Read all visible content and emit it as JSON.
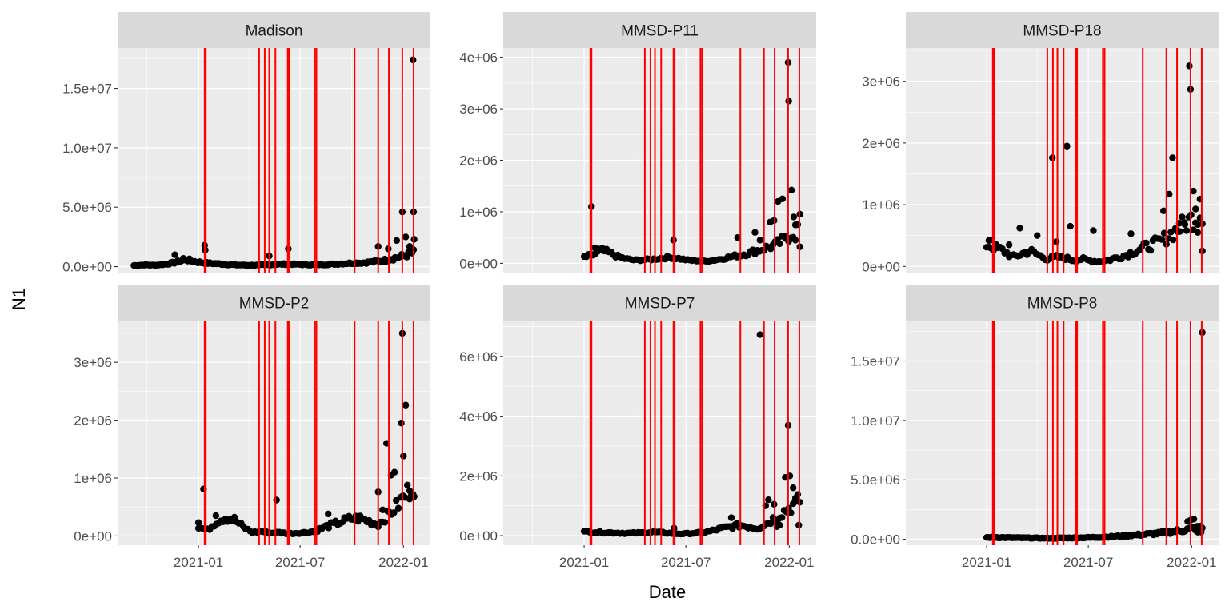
{
  "chart_data": {
    "type": "scatter",
    "xlabel": "Date",
    "ylabel": "N1",
    "x_ticks": [
      "2021-01",
      "2021-07",
      "2022-01"
    ],
    "x_range": [
      "2020-08-10",
      "2022-02-18"
    ],
    "vertical_lines": {
      "color": "#ff0000",
      "dates": [
        "2021-01-12",
        "2021-01-14",
        "2021-04-19",
        "2021-04-29",
        "2021-05-07",
        "2021-05-18",
        "2021-06-09",
        "2021-06-11",
        "2021-07-27",
        "2021-07-30",
        "2021-10-06",
        "2021-11-17",
        "2021-12-06",
        "2021-12-30",
        "2022-01-19"
      ]
    },
    "panels": [
      {
        "title": "Madison",
        "ylim": [
          -500000,
          18400000
        ],
        "y_ticks": [
          0,
          5000000,
          10000000,
          15000000
        ],
        "y_tick_labels": [
          "0.0e+00",
          "5.0e+06",
          "1.0e+07",
          "1.5e+07"
        ],
        "series": {
          "baseline": {
            "start": "2020-09-08",
            "end": "2022-01-20",
            "step_days": 3,
            "values": [
              100000,
              150000,
              120000,
              200000,
              350000,
              600000,
              400000,
              300000,
              250000,
              180000,
              140000,
              120000,
              130000,
              160000,
              200000,
              220000,
              180000,
              160000,
              170000,
              200000,
              250000,
              300000,
              320000,
              400000,
              500000,
              700000,
              900000,
              1200000
            ]
          },
          "points": [
            {
              "x": "2020-11-20",
              "y": 1000000
            },
            {
              "x": "2020-12-05",
              "y": 700000
            },
            {
              "x": "2021-01-12",
              "y": 1800000
            },
            {
              "x": "2021-01-13",
              "y": 1400000
            },
            {
              "x": "2021-05-07",
              "y": 900000
            },
            {
              "x": "2021-06-10",
              "y": 1500000
            },
            {
              "x": "2021-11-17",
              "y": 1700000
            },
            {
              "x": "2021-12-05",
              "y": 1500000
            },
            {
              "x": "2021-12-20",
              "y": 2200000
            },
            {
              "x": "2021-12-30",
              "y": 4600000
            },
            {
              "x": "2022-01-05",
              "y": 2500000
            },
            {
              "x": "2022-01-12",
              "y": 1700000
            },
            {
              "x": "2022-01-18",
              "y": 17400000
            },
            {
              "x": "2022-01-19",
              "y": 4600000
            },
            {
              "x": "2022-01-20",
              "y": 2300000
            }
          ]
        }
      },
      {
        "title": "MMSD-P11",
        "ylim": [
          -180000,
          4180000
        ],
        "y_ticks": [
          0,
          1000000,
          2000000,
          3000000,
          4000000
        ],
        "y_tick_labels": [
          "0e+00",
          "1e+06",
          "2e+06",
          "3e+06",
          "4e+06"
        ],
        "series": {
          "baseline": {
            "start": "2021-01-01",
            "end": "2022-01-22",
            "step_days": 4,
            "values": [
              120000,
              160000,
              250000,
              200000,
              120000,
              80000,
              60000,
              70000,
              80000,
              100000,
              120000,
              90000,
              60000,
              50000,
              40000,
              60000,
              90000,
              130000,
              160000,
              200000,
              250000,
              300000,
              350000,
              450000,
              600000,
              800000
            ]
          },
          "points": [
            {
              "x": "2021-01-14",
              "y": 1100000
            },
            {
              "x": "2021-01-20",
              "y": 300000
            },
            {
              "x": "2021-01-25",
              "y": 280000
            },
            {
              "x": "2021-06-09",
              "y": 450000
            },
            {
              "x": "2021-10-01",
              "y": 500000
            },
            {
              "x": "2021-11-01",
              "y": 600000
            },
            {
              "x": "2021-11-10",
              "y": 450000
            },
            {
              "x": "2021-11-28",
              "y": 800000
            },
            {
              "x": "2021-12-05",
              "y": 830000
            },
            {
              "x": "2021-12-12",
              "y": 1200000
            },
            {
              "x": "2021-12-20",
              "y": 1250000
            },
            {
              "x": "2021-12-30",
              "y": 3900000
            },
            {
              "x": "2021-12-31",
              "y": 3150000
            },
            {
              "x": "2022-01-05",
              "y": 1420000
            },
            {
              "x": "2022-01-09",
              "y": 900000
            },
            {
              "x": "2022-01-12",
              "y": 450000
            },
            {
              "x": "2022-01-16",
              "y": 750000
            },
            {
              "x": "2022-01-20",
              "y": 320000
            }
          ]
        }
      },
      {
        "title": "MMSD-P18",
        "ylim": [
          -100000,
          3540000
        ],
        "y_ticks": [
          0,
          1000000,
          2000000,
          3000000
        ],
        "y_tick_labels": [
          "0e+00",
          "1e+06",
          "2e+06",
          "3e+06"
        ],
        "series": {
          "baseline": {
            "start": "2021-01-01",
            "end": "2022-01-22",
            "step_days": 4,
            "values": [
              350000,
              300000,
              250000,
              150000,
              200000,
              250000,
              180000,
              120000,
              150000,
              140000,
              100000,
              120000,
              90000,
              80000,
              100000,
              140000,
              180000,
              240000,
              300000,
              350000,
              400000,
              500000,
              600000,
              700000,
              800000,
              900000
            ]
          },
          "points": [
            {
              "x": "2021-01-05",
              "y": 420000
            },
            {
              "x": "2021-01-10",
              "y": 430000
            },
            {
              "x": "2021-02-10",
              "y": 350000
            },
            {
              "x": "2021-03-01",
              "y": 620000
            },
            {
              "x": "2021-04-01",
              "y": 500000
            },
            {
              "x": "2021-04-28",
              "y": 1760000
            },
            {
              "x": "2021-05-05",
              "y": 400000
            },
            {
              "x": "2021-05-24",
              "y": 1950000
            },
            {
              "x": "2021-05-30",
              "y": 650000
            },
            {
              "x": "2021-07-10",
              "y": 580000
            },
            {
              "x": "2021-09-15",
              "y": 530000
            },
            {
              "x": "2021-11-12",
              "y": 900000
            },
            {
              "x": "2021-11-22",
              "y": 1170000
            },
            {
              "x": "2021-11-28",
              "y": 1760000
            },
            {
              "x": "2021-12-10",
              "y": 700000
            },
            {
              "x": "2021-12-20",
              "y": 680000
            },
            {
              "x": "2021-12-28",
              "y": 3250000
            },
            {
              "x": "2021-12-30",
              "y": 2870000
            },
            {
              "x": "2022-01-04",
              "y": 1220000
            },
            {
              "x": "2022-01-08",
              "y": 930000
            },
            {
              "x": "2022-01-12",
              "y": 550000
            },
            {
              "x": "2022-01-16",
              "y": 1090000
            },
            {
              "x": "2022-01-20",
              "y": 250000
            }
          ]
        }
      },
      {
        "title": "MMSD-P2",
        "ylim": [
          -160000,
          3720000
        ],
        "y_ticks": [
          0,
          1000000,
          2000000,
          3000000
        ],
        "y_tick_labels": [
          "0e+00",
          "1e+06",
          "2e+06",
          "3e+06"
        ],
        "series": {
          "baseline": {
            "start": "2021-01-01",
            "end": "2022-01-20",
            "step_days": 4,
            "values": [
              150000,
              100000,
              250000,
              320000,
              280000,
              150000,
              60000,
              80000,
              50000,
              60000,
              40000,
              50000,
              60000,
              80000,
              150000,
              200000,
              250000,
              300000,
              300000,
              250000,
              200000,
              350000,
              500000,
              700000,
              900000
            ]
          },
          "points": [
            {
              "x": "2021-01-01",
              "y": 230000
            },
            {
              "x": "2021-01-10",
              "y": 810000
            },
            {
              "x": "2021-02-01",
              "y": 350000
            },
            {
              "x": "2021-05-20",
              "y": 620000
            },
            {
              "x": "2021-08-20",
              "y": 380000
            },
            {
              "x": "2021-11-17",
              "y": 760000
            },
            {
              "x": "2021-11-25",
              "y": 450000
            },
            {
              "x": "2021-12-02",
              "y": 1600000
            },
            {
              "x": "2021-12-10",
              "y": 1050000
            },
            {
              "x": "2021-12-16",
              "y": 1100000
            },
            {
              "x": "2021-12-28",
              "y": 1950000
            },
            {
              "x": "2021-12-30",
              "y": 3500000
            },
            {
              "x": "2022-01-01",
              "y": 1380000
            },
            {
              "x": "2022-01-05",
              "y": 2260000
            },
            {
              "x": "2022-01-12",
              "y": 780000
            },
            {
              "x": "2022-01-15",
              "y": 700000
            },
            {
              "x": "2022-01-18",
              "y": 720000
            }
          ]
        }
      },
      {
        "title": "MMSD-P7",
        "ylim": [
          -320000,
          7200000
        ],
        "y_ticks": [
          0,
          2000000,
          4000000,
          6000000
        ],
        "y_tick_labels": [
          "0e+00",
          "2e+06",
          "4e+06",
          "6e+06"
        ],
        "series": {
          "baseline": {
            "start": "2021-01-01",
            "end": "2022-01-22",
            "step_days": 4,
            "values": [
              130000,
              120000,
              110000,
              100000,
              90000,
              80000,
              90000,
              100000,
              120000,
              100000,
              80000,
              60000,
              70000,
              90000,
              120000,
              180000,
              250000,
              300000,
              350000,
              300000,
              250000,
              400000,
              600000,
              800000,
              1000000,
              1200000
            ]
          },
          "points": [
            {
              "x": "2021-06-10",
              "y": 250000
            },
            {
              "x": "2021-09-20",
              "y": 600000
            },
            {
              "x": "2021-11-10",
              "y": 6730000
            },
            {
              "x": "2021-11-20",
              "y": 1000000
            },
            {
              "x": "2021-11-25",
              "y": 1200000
            },
            {
              "x": "2021-12-05",
              "y": 1050000
            },
            {
              "x": "2021-12-10",
              "y": 300000
            },
            {
              "x": "2021-12-15",
              "y": 350000
            },
            {
              "x": "2021-12-25",
              "y": 1950000
            },
            {
              "x": "2021-12-30",
              "y": 3700000
            },
            {
              "x": "2022-01-02",
              "y": 2000000
            },
            {
              "x": "2022-01-08",
              "y": 1600000
            },
            {
              "x": "2022-01-14",
              "y": 1150000
            },
            {
              "x": "2022-01-18",
              "y": 350000
            }
          ]
        }
      },
      {
        "title": "MMSD-P8",
        "ylim": [
          -500000,
          18400000
        ],
        "y_ticks": [
          0,
          5000000,
          10000000,
          15000000
        ],
        "y_tick_labels": [
          "0.0e+00",
          "5.0e+06",
          "1.0e+07",
          "1.5e+07"
        ],
        "series": {
          "baseline": {
            "start": "2021-01-01",
            "end": "2022-01-22",
            "step_days": 3,
            "values": [
              150000,
              160000,
              140000,
              130000,
              120000,
              110000,
              100000,
              90000,
              100000,
              110000,
              120000,
              130000,
              150000,
              180000,
              200000,
              250000,
              300000,
              350000,
              400000,
              450000,
              500000,
              600000,
              700000,
              800000,
              900000,
              1000000
            ]
          },
          "points": [
            {
              "x": "2021-12-25",
              "y": 1500000
            },
            {
              "x": "2021-12-30",
              "y": 1600000
            },
            {
              "x": "2022-01-05",
              "y": 1700000
            },
            {
              "x": "2022-01-12",
              "y": 600000
            },
            {
              "x": "2022-01-18",
              "y": 600000
            },
            {
              "x": "2022-01-20",
              "y": 17400000
            }
          ]
        }
      }
    ]
  }
}
